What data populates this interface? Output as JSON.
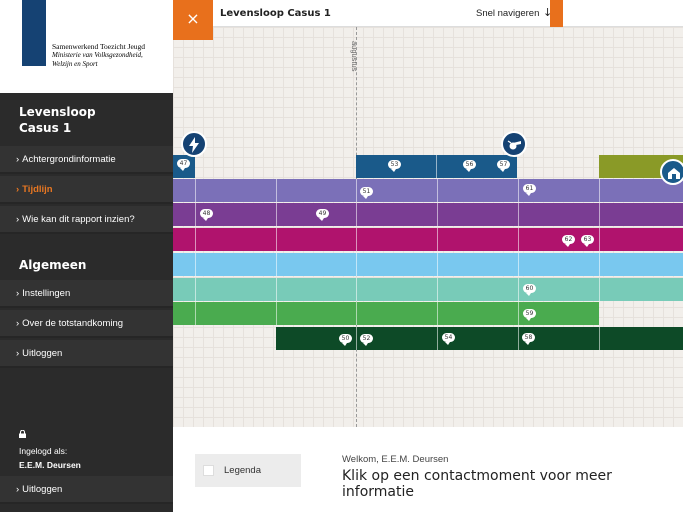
{
  "brand": {
    "line1": "Samenwerkend Toezicht Jeugd",
    "line2": "Ministerie van Volksgezondheid, Welzijn en Sport",
    "ribbon_color": "#154273"
  },
  "sidebar": {
    "case_title_line1": "Levensloop",
    "case_title_line2": "Casus 1",
    "case_items": [
      {
        "label": "Achtergrondinformatie",
        "active": false
      },
      {
        "label": "Tijdlijn",
        "active": true
      },
      {
        "label": "Wie kan dit rapport inzien?",
        "active": false
      }
    ],
    "general_title": "Algemeen",
    "general_items": [
      {
        "label": "Instellingen"
      },
      {
        "label": "Over de totstandkoming"
      },
      {
        "label": "Uitloggen"
      }
    ],
    "logged_in_label": "Ingelogd als:",
    "username": "E.E.M. Deursen",
    "logout_label": "Uitloggen",
    "chevron": "›"
  },
  "header": {
    "close_icon": "×",
    "title": "Levensloop Casus 1",
    "nav_label": "Snel navigeren",
    "nav_icon": "↓",
    "accent": "#e8701c"
  },
  "timeline": {
    "month_label": "augustus",
    "rows": [
      {
        "color": "#1a5a8a",
        "badges": [
          "53",
          "56",
          "57"
        ]
      },
      {
        "color": "#7b70b8",
        "badges": [
          "51",
          "61"
        ]
      },
      {
        "color": "#7a3d93",
        "badges": [
          "48",
          "49"
        ]
      },
      {
        "color": "#b0136d",
        "badges": [
          "62",
          "63"
        ]
      },
      {
        "color": "#79c8ef",
        "badges": []
      },
      {
        "color": "#78cbb8",
        "badges": [
          "60"
        ]
      },
      {
        "color": "#4aab4f",
        "badges": [
          "59"
        ]
      },
      {
        "color": "#0d4a27",
        "badges": [
          "50",
          "52",
          "54",
          "58"
        ]
      },
      {
        "color": "#8a9a27",
        "badges": []
      }
    ],
    "pins": [
      {
        "icon": "lightning-icon",
        "badge": "47"
      },
      {
        "icon": "whistle-icon"
      },
      {
        "icon": "house-icon"
      }
    ]
  },
  "bottom": {
    "legend_label": "Legenda",
    "welcome": "Welkom, E.E.M. Deursen",
    "info_title": "Klik op een contactmoment voor meer informatie"
  }
}
